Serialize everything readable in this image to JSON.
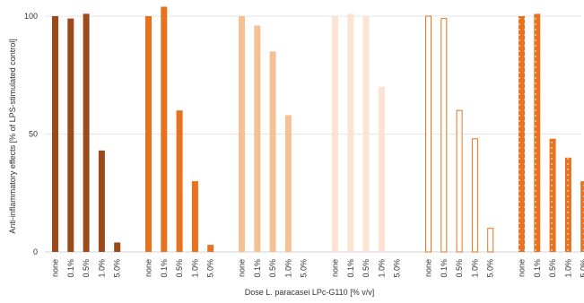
{
  "chart_data": {
    "type": "bar",
    "xlabel": "Dose L. paracasei LPc-G110 [% v/v]",
    "ylabel": "Anti-inflammatory effects [% of LPS-stimulated control]",
    "ylim": [
      0,
      100
    ],
    "yticks": [
      0,
      50,
      100
    ],
    "grid": true,
    "categories": [
      "none",
      "0.1%",
      "0.5%",
      "1.0%",
      "5.0%"
    ],
    "groups": [
      {
        "color": "#9c4a1a",
        "pattern": "solid",
        "values": [
          100,
          99,
          101,
          43,
          4
        ]
      },
      {
        "color": "#e5731f",
        "pattern": "solid",
        "values": [
          100,
          104,
          60,
          30,
          3
        ]
      },
      {
        "color": "#f6c095",
        "pattern": "solid",
        "values": [
          100,
          96,
          85,
          58,
          null
        ]
      },
      {
        "color": "#fce3d2",
        "pattern": "solid",
        "values": [
          100,
          101,
          100,
          70,
          null
        ]
      },
      {
        "color": "#e5731f",
        "pattern": "outline",
        "values": [
          100,
          99,
          60,
          48,
          10
        ]
      },
      {
        "color": "#e5731f",
        "pattern": "dotted",
        "values": [
          100,
          101,
          48,
          40,
          30
        ]
      }
    ]
  }
}
